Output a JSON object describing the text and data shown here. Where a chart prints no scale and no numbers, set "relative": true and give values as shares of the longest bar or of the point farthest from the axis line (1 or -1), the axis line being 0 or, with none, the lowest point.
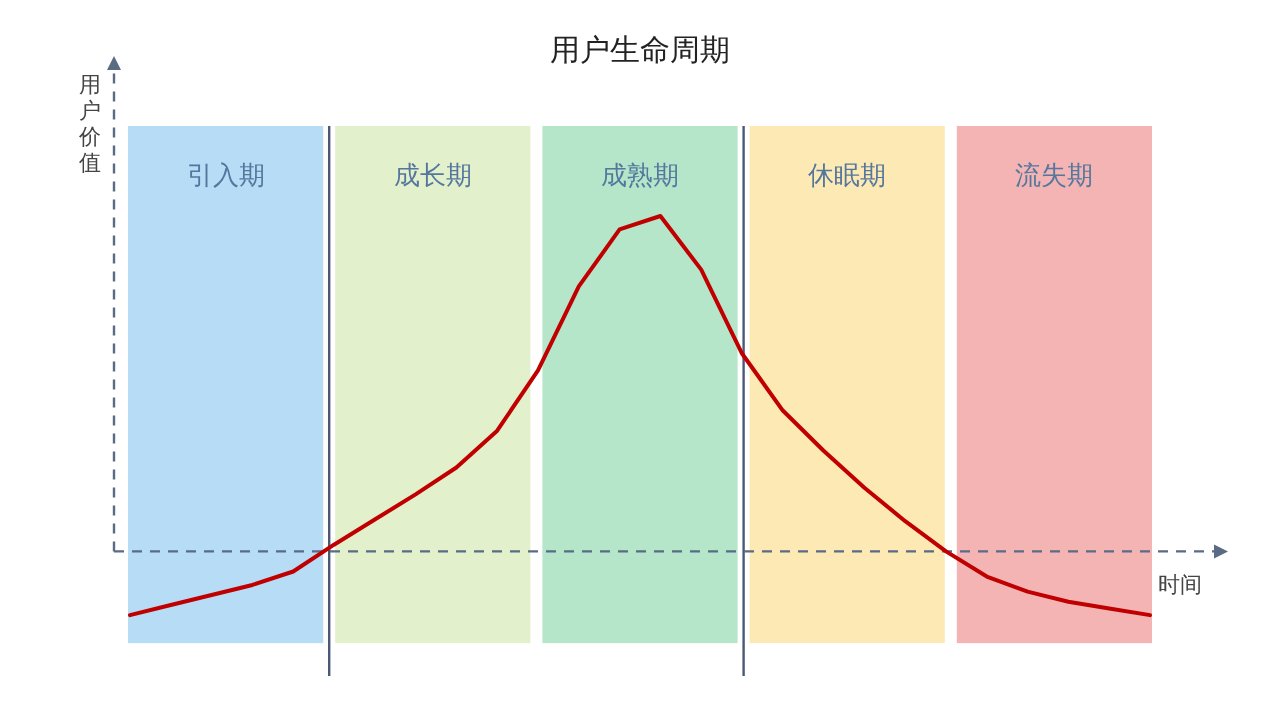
{
  "chart_data": {
    "type": "line",
    "title": "用户生命周期",
    "xlabel": "时间",
    "ylabel": "用户价值",
    "relative": true,
    "categories": [
      null,
      null,
      null,
      null,
      null,
      null,
      null,
      null,
      null,
      null,
      null,
      null,
      null,
      null,
      null,
      null,
      null,
      null,
      null,
      null,
      null,
      null,
      null,
      null,
      null,
      null
    ],
    "series": [
      {
        "color": "#c00000",
        "values": [
          -0.19,
          -0.16,
          -0.13,
          -0.1,
          -0.06,
          0.02,
          0.095,
          0.17,
          0.25,
          0.36,
          0.54,
          0.79,
          0.96,
          1,
          0.84,
          0.59,
          0.42,
          0.3,
          0.19,
          0.09,
          0,
          -0.075,
          -0.12,
          -0.15,
          -0.17,
          -0.19
        ]
      }
    ],
    "annotations": [
      "引入期",
      "成长期",
      "成熟期",
      "休眠期",
      "流失期"
    ],
    "ref_lines": [
      {
        "axis": "y",
        "value": 0,
        "color": "#5a6b85",
        "line_style": "dashed"
      }
    ]
  }
}
